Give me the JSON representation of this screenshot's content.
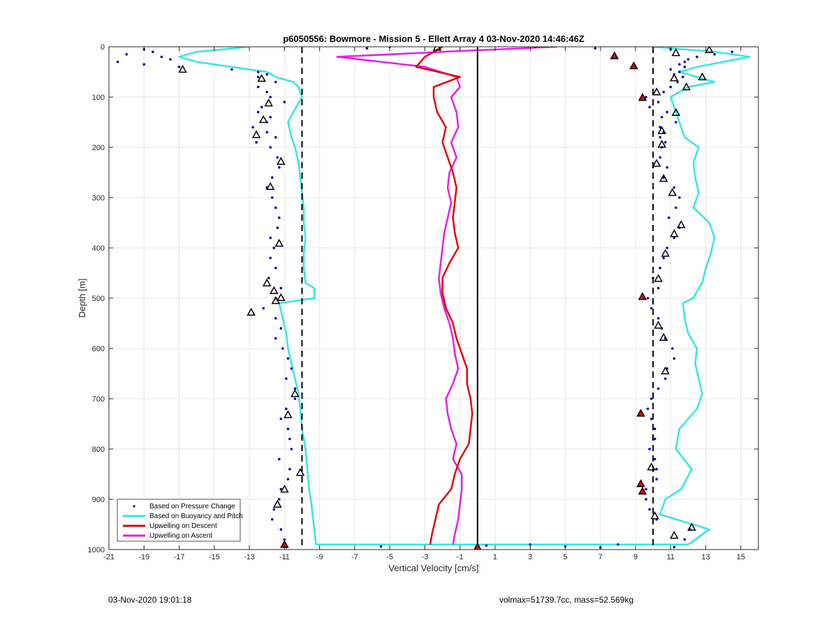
{
  "footer": {
    "left": "03-Nov-2020 19:01:18",
    "right": "volmax=51739.7cc, mass=52.569kg"
  },
  "chart_data": {
    "type": "scatter",
    "title": "p6050556: Bowmore - Mission 5 - Ellett Array 4 03-Nov-2020 14:46:46Z",
    "xlabel": "Vertical Velocity [cm/s]",
    "ylabel": "Depth [m]",
    "xlim": [
      -21,
      16
    ],
    "ylim": [
      0,
      1000
    ],
    "y_reversed": true,
    "grid": true,
    "x_ticks": [
      -21,
      -19,
      -17,
      -15,
      -13,
      -11,
      -9,
      -7,
      -5,
      -3,
      -1,
      1,
      3,
      5,
      7,
      9,
      11,
      13,
      15
    ],
    "y_ticks": [
      0,
      100,
      200,
      300,
      400,
      500,
      600,
      700,
      800,
      900,
      1000
    ],
    "legend_position": "bottom-left",
    "reference_lines": [
      {
        "x": -10,
        "style": "dashed",
        "color": "#000000"
      },
      {
        "x": 10,
        "style": "dashed",
        "color": "#000000"
      },
      {
        "x": 0,
        "style": "solid",
        "color": "#000000"
      }
    ],
    "series": [
      {
        "name": "Based on Buoyancy and Pitch",
        "kind": "line",
        "color": "#33e6e6",
        "y": [
          0,
          10,
          20,
          30,
          40,
          50,
          60,
          70,
          80,
          100,
          130,
          150,
          180,
          200,
          230,
          260,
          290,
          320,
          350,
          380,
          410,
          440,
          470,
          480,
          500,
          510,
          540,
          570,
          600,
          630,
          660,
          690,
          720,
          760,
          800,
          840,
          880,
          900,
          930,
          960,
          990
        ],
        "x_descent": [
          -13,
          -16,
          -17,
          -16,
          -14,
          -12,
          -11.5,
          -10.5,
          -10.2,
          -10,
          -10.5,
          -10.8,
          -10.6,
          -10.4,
          -10.2,
          -10.1,
          -10,
          -9.9,
          -9.9,
          -9.8,
          -9.9,
          -9.9,
          -9.8,
          -9.3,
          -9.3,
          -11.3,
          -11.1,
          -10.9,
          -10.8,
          -10.6,
          -10.4,
          -10.2,
          -10.1,
          -10,
          -9.8,
          -9.7,
          -9.6,
          -9.5,
          -9.4,
          -9.3,
          -9.2
        ],
        "x_ascent": [
          10,
          13.5,
          15.5,
          14,
          12.5,
          11.5,
          12.5,
          13.5,
          12,
          11,
          11.3,
          11.5,
          11.8,
          12.6,
          12.3,
          12.4,
          12.6,
          12.3,
          13.2,
          13.5,
          13.3,
          13,
          12.8,
          12.6,
          12.3,
          11.7,
          11.8,
          12,
          12.5,
          12.4,
          12.6,
          12.8,
          12.5,
          11.5,
          11.3,
          12.2,
          11.6,
          10.7,
          10.4,
          13.2,
          12
        ]
      },
      {
        "name": "Upwelling on Descent",
        "kind": "line",
        "color": "#e60000",
        "y": [
          0,
          20,
          40,
          60,
          80,
          100,
          130,
          160,
          190,
          220,
          250,
          280,
          310,
          340,
          370,
          400,
          430,
          460,
          490,
          520,
          550,
          580,
          610,
          640,
          670,
          700,
          730,
          760,
          790,
          820,
          850,
          880,
          910,
          940,
          970,
          990
        ],
        "x": [
          -2,
          -3,
          -3.5,
          -1,
          -2.5,
          -2.5,
          -2.3,
          -1.8,
          -2,
          -1.7,
          -1.4,
          -1.2,
          -1.3,
          -1.4,
          -1.3,
          -1.1,
          -1.6,
          -2,
          -2,
          -1.8,
          -1.4,
          -1.2,
          -0.9,
          -0.6,
          -0.6,
          -0.4,
          -0.3,
          -0.4,
          -0.5,
          -1,
          -1.3,
          -1.5,
          -2.2,
          -2.4,
          -2.6,
          -2.7
        ]
      },
      {
        "name": "Upwelling on Ascent",
        "kind": "line",
        "color": "#e61ee6",
        "y": [
          0,
          10,
          20,
          40,
          60,
          80,
          100,
          130,
          160,
          190,
          220,
          250,
          280,
          310,
          340,
          370,
          400,
          430,
          460,
          490,
          520,
          550,
          580,
          610,
          640,
          670,
          700,
          730,
          760,
          790,
          820,
          850,
          880,
          910,
          940,
          970,
          990
        ],
        "x": [
          4.5,
          -2,
          -8,
          -3,
          -1.2,
          -1,
          -1.5,
          -1.2,
          -1.1,
          -1.5,
          -1.2,
          -1.6,
          -1.7,
          -1.5,
          -1.7,
          -1.9,
          -2,
          -2.1,
          -2.2,
          -2.1,
          -1.9,
          -1.6,
          -1.4,
          -1.3,
          -1.1,
          -1.4,
          -1.8,
          -1.7,
          -1.5,
          -1.2,
          -1.4,
          -0.9,
          -0.9,
          -1,
          -1.1,
          -1.3,
          -1.4
        ]
      },
      {
        "name": "Based on Pressure Change",
        "kind": "scatter",
        "color": "#0000b4",
        "y": [
          5,
          10,
          15,
          20,
          25,
          30,
          35,
          40,
          45,
          50,
          55,
          60,
          70,
          80,
          90,
          100,
          110,
          120,
          130,
          140,
          150,
          160,
          170,
          180,
          190,
          200,
          220,
          240,
          260,
          280,
          300,
          320,
          340,
          360,
          380,
          400,
          420,
          440,
          460,
          480,
          500,
          520,
          540,
          560,
          580,
          600,
          620,
          640,
          660,
          680,
          700,
          720,
          740,
          760,
          780,
          800,
          820,
          840,
          860,
          880,
          900,
          920,
          940,
          960,
          980,
          995
        ],
        "x_descent": [
          -19,
          -18.5,
          -20,
          -18,
          -17.5,
          -20.5,
          -19,
          -17,
          -14,
          -12.5,
          -12,
          -12.5,
          -11.5,
          -12.5,
          -12,
          -11.8,
          -11,
          -12.3,
          -12.5,
          -11.8,
          -12,
          -12.8,
          -12,
          -11.5,
          -12.6,
          -11.8,
          -11.4,
          -11.3,
          -11.7,
          -12,
          -11.7,
          -11.5,
          -11.3,
          -11.4,
          -11.8,
          -11.6,
          -11.8,
          -11.5,
          -11.9,
          -11.2,
          -11.5,
          -12.2,
          -11.5,
          -11.2,
          -11.5,
          -11.1,
          -10.8,
          -10.6,
          -10.9,
          -10.4,
          -10.4,
          -10.9,
          -11.2,
          -10.8,
          -10.7,
          -10.6,
          -11.3,
          -10.7,
          -10.8,
          -11.2,
          -11.3,
          -11.6,
          -11.7,
          -11.2,
          -11,
          -10.9
        ],
        "x_ascent": [
          11,
          14.5,
          13.5,
          12.5,
          12,
          11.8,
          11.5,
          11.8,
          11,
          11.5,
          11.2,
          11.7,
          11.4,
          11,
          10.6,
          9.6,
          10.3,
          9.8,
          10.8,
          10.5,
          11.3,
          10.4,
          10.6,
          10.4,
          10.7,
          10.5,
          10.4,
          10.8,
          10.6,
          11.2,
          11.5,
          11.3,
          10.9,
          11.5,
          11.2,
          10.8,
          10.6,
          10.4,
          10,
          10.3,
          9.7,
          9.9,
          10.3,
          10.5,
          10.7,
          11.1,
          11.2,
          10.8,
          10.7,
          10.3,
          9.9,
          9.7,
          9.9,
          10.1,
          10.1,
          9.8,
          10.1,
          10.2,
          10.2,
          9.6,
          9.6,
          9.8,
          10.2,
          12.1,
          11.8,
          11.2
        ],
        "outliers": [
          {
            "x": -5.5,
            "y": 994
          },
          {
            "x": 3,
            "y": 990
          },
          {
            "x": 5,
            "y": 994
          },
          {
            "x": 7,
            "y": 996
          },
          {
            "x": 8,
            "y": 990
          },
          {
            "x": 0.5,
            "y": 992
          },
          {
            "x": 3.3,
            "y": 0
          },
          {
            "x": 6.7,
            "y": 3
          },
          {
            "x": -6.3,
            "y": 3
          },
          {
            "x": -5,
            "y": 0
          }
        ]
      }
    ],
    "markers": {
      "open_triangles": [
        {
          "x": -2.3,
          "y": 1
        },
        {
          "x": -16.8,
          "y": 45
        },
        {
          "x": -12.3,
          "y": 63
        },
        {
          "x": -11.9,
          "y": 112
        },
        {
          "x": -12.2,
          "y": 145
        },
        {
          "x": -12.6,
          "y": 175
        },
        {
          "x": -11.2,
          "y": 228
        },
        {
          "x": -11.8,
          "y": 278
        },
        {
          "x": -11.3,
          "y": 391
        },
        {
          "x": -12,
          "y": 470
        },
        {
          "x": -11.6,
          "y": 485
        },
        {
          "x": -11.2,
          "y": 499
        },
        {
          "x": -11.5,
          "y": 505
        },
        {
          "x": -12.9,
          "y": 528
        },
        {
          "x": -10.4,
          "y": 690
        },
        {
          "x": -10.8,
          "y": 732
        },
        {
          "x": -10.1,
          "y": 847
        },
        {
          "x": -11,
          "y": 880
        },
        {
          "x": -11.4,
          "y": 910
        },
        {
          "x": 13.2,
          "y": 6
        },
        {
          "x": 11.3,
          "y": 12
        },
        {
          "x": 12.8,
          "y": 60
        },
        {
          "x": 11.9,
          "y": 80
        },
        {
          "x": 11.2,
          "y": 62
        },
        {
          "x": 10.2,
          "y": 90
        },
        {
          "x": 11.3,
          "y": 131
        },
        {
          "x": 10.5,
          "y": 167
        },
        {
          "x": 10.5,
          "y": 194
        },
        {
          "x": 10.2,
          "y": 232
        },
        {
          "x": 10.6,
          "y": 262
        },
        {
          "x": 11.1,
          "y": 290
        },
        {
          "x": 11.6,
          "y": 354
        },
        {
          "x": 11.2,
          "y": 372
        },
        {
          "x": 10.7,
          "y": 411
        },
        {
          "x": 10.3,
          "y": 461
        },
        {
          "x": 10.3,
          "y": 554
        },
        {
          "x": 10.6,
          "y": 578
        },
        {
          "x": 10.7,
          "y": 645
        },
        {
          "x": 9.9,
          "y": 836
        },
        {
          "x": 10.1,
          "y": 933
        },
        {
          "x": 12.2,
          "y": 956
        },
        {
          "x": 11.2,
          "y": 972
        }
      ],
      "red_triangles": [
        {
          "x": 7.8,
          "y": 18
        },
        {
          "x": 8.9,
          "y": 38
        },
        {
          "x": 9.4,
          "y": 101
        },
        {
          "x": 9.4,
          "y": 497
        },
        {
          "x": 9.3,
          "y": 729
        },
        {
          "x": 9.3,
          "y": 869
        },
        {
          "x": 9.4,
          "y": 884
        },
        {
          "x": -11,
          "y": 990
        },
        {
          "x": 0,
          "y": 995
        }
      ]
    }
  }
}
